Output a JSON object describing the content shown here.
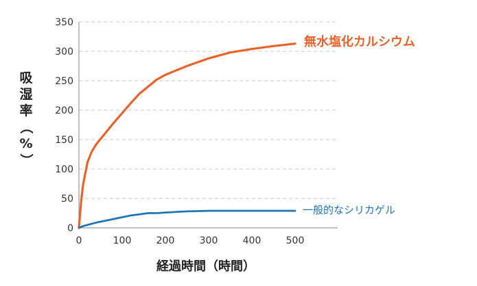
{
  "chart_data": {
    "type": "line",
    "title": "",
    "xlabel": "経過時間（時間）",
    "ylabel_parts": [
      "吸",
      "湿",
      "率",
      "（",
      "%",
      "）"
    ],
    "xlim": [
      0,
      600
    ],
    "ylim": [
      0,
      350
    ],
    "xticks": [
      0,
      100,
      200,
      300,
      400,
      500
    ],
    "yticks": [
      0,
      50,
      100,
      150,
      200,
      250,
      300,
      350
    ],
    "grid": "horizontal dashed",
    "series": [
      {
        "name": "無水塩化カルシウム",
        "color": "#e8622a",
        "x": [
          0,
          5,
          10,
          20,
          30,
          40,
          60,
          80,
          100,
          120,
          140,
          160,
          180,
          200,
          220,
          250,
          300,
          350,
          400,
          450,
          500
        ],
        "y": [
          0,
          45,
          75,
          112,
          130,
          142,
          160,
          178,
          195,
          212,
          228,
          240,
          252,
          260,
          266,
          275,
          288,
          298,
          304,
          309,
          313
        ]
      },
      {
        "name": "一般的なシリカゲル",
        "color": "#1f75b6",
        "x": [
          0,
          10,
          20,
          40,
          60,
          80,
          100,
          120,
          140,
          160,
          180,
          200,
          250,
          300,
          350,
          400,
          450,
          500
        ],
        "y": [
          0,
          3,
          5,
          9,
          12,
          15,
          18,
          21,
          23,
          25,
          25,
          26,
          28,
          29,
          29,
          29,
          29,
          29
        ]
      }
    ]
  }
}
